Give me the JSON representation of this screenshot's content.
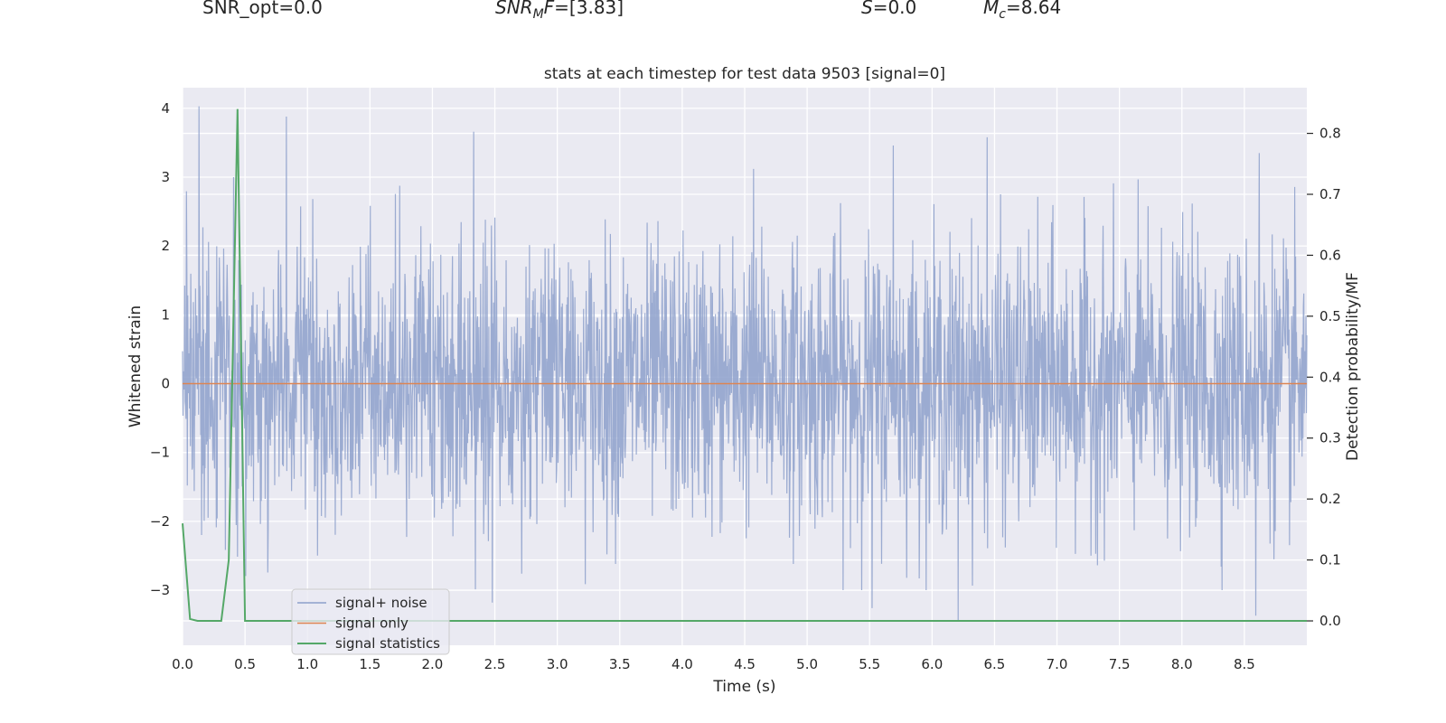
{
  "header": {
    "snr_opt": "SNR_opt=0.0",
    "snr_mf_sym": "SNR",
    "snr_mf_sub": "M",
    "snr_mf_sym2": "F",
    "snr_mf_val": "=[3.83]",
    "s_sym": "S",
    "s_val": "=0.0",
    "mc_sym": "M",
    "mc_sub": "c",
    "mc_val": "=8.64"
  },
  "chart_data": {
    "type": "line",
    "title": "stats at each timestep for test data 9503 [signal=0]",
    "xlabel": "Time (s)",
    "ylabel": "Whitened strain",
    "ylabel_right": "Detection probability/MF",
    "xlim": [
      0.0,
      9.0
    ],
    "ylim": [
      -3.8,
      4.3
    ],
    "ylim_right": [
      -0.04,
      0.875
    ],
    "xticks": [
      0.0,
      0.5,
      1.0,
      1.5,
      2.0,
      2.5,
      3.0,
      3.5,
      4.0,
      4.5,
      5.0,
      5.5,
      6.0,
      6.5,
      7.0,
      7.5,
      8.0,
      8.5
    ],
    "xtick_labels": [
      "0.0",
      "0.5",
      "1.0",
      "1.5",
      "2.0",
      "2.5",
      "3.0",
      "3.5",
      "4.0",
      "4.5",
      "5.0",
      "5.5",
      "6.0",
      "6.5",
      "7.0",
      "7.5",
      "8.0",
      "8.5"
    ],
    "yticks": [
      4,
      3,
      2,
      1,
      0,
      -1,
      -2,
      -3
    ],
    "ytick_labels": [
      "4",
      "3",
      "2",
      "1",
      "0",
      "−1",
      "−2",
      "−3"
    ],
    "yticks_right": [
      0.8,
      0.7,
      0.6,
      0.5,
      0.4,
      0.3,
      0.2,
      0.1,
      0.0
    ],
    "ytick_right_labels": [
      "0.8",
      "0.7",
      "0.6",
      "0.5",
      "0.4",
      "0.3",
      "0.2",
      "0.1",
      "0.0"
    ],
    "grid": true,
    "legend": {
      "position": "bottom-left",
      "entries": [
        "signal+ noise",
        "signal only",
        "signal statistics"
      ]
    },
    "series": [
      {
        "name": "signal+ noise",
        "axis": "left",
        "color": "#8da0cb",
        "description_values": {
          "std": 1.0,
          "peak_max": 4.03,
          "peak_min": -3.45
        },
        "peaks": [
          {
            "x": 0.13,
            "y": 4.03
          },
          {
            "x": 0.83,
            "y": 3.88
          },
          {
            "x": 2.33,
            "y": 3.66
          },
          {
            "x": 4.57,
            "y": 3.12
          },
          {
            "x": 5.69,
            "y": 3.46
          },
          {
            "x": 6.44,
            "y": 3.58
          },
          {
            "x": 8.62,
            "y": 3.35
          },
          {
            "x": 2.48,
            "y": -3.18
          },
          {
            "x": 5.52,
            "y": -3.26
          },
          {
            "x": 6.21,
            "y": -3.45
          },
          {
            "x": 8.59,
            "y": -3.37
          }
        ]
      },
      {
        "name": "signal only",
        "axis": "left",
        "color": "#dd8452",
        "x": [
          0.0,
          9.0
        ],
        "y": [
          0.0,
          0.0
        ]
      },
      {
        "name": "signal statistics",
        "axis": "right",
        "color": "#55a868",
        "x": [
          0.0,
          0.06,
          0.12,
          0.31,
          0.37,
          0.44,
          0.5,
          9.0
        ],
        "y": [
          0.16,
          0.003,
          0.0,
          0.0,
          0.1,
          0.84,
          0.0,
          0.0
        ]
      }
    ]
  }
}
